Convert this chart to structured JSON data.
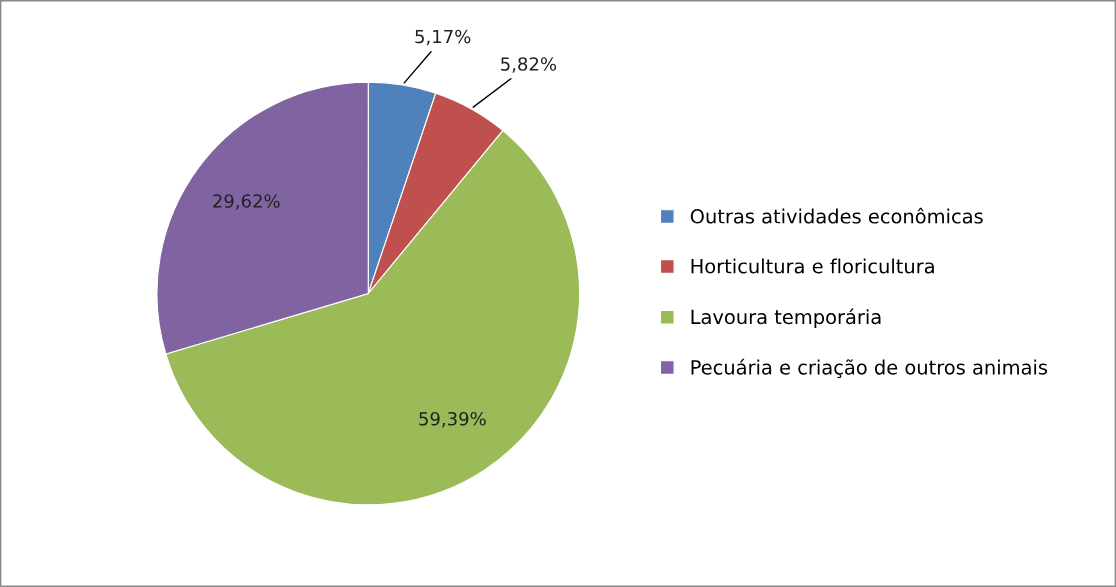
{
  "chart_data": {
    "type": "pie",
    "categories": [
      "Outras atividades econômicas",
      "Horticultura e floricultura",
      "Lavoura temporária",
      "Pecuária e criação de outros animais"
    ],
    "values": [
      5.17,
      5.82,
      59.39,
      29.62
    ],
    "value_labels": [
      "5,17%",
      "5,82%",
      "59,39%",
      "29,62%"
    ],
    "colors": [
      "#4f81bd",
      "#c0504d",
      "#9bbb59",
      "#8064a2"
    ],
    "legend": "right"
  }
}
